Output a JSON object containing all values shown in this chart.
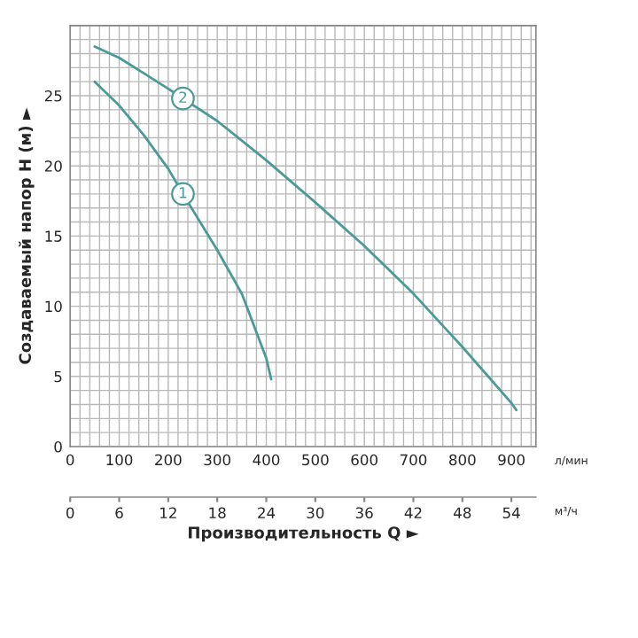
{
  "chart_data": {
    "type": "line",
    "xlabel": "Производительность Q ►",
    "ylabel": "Создаваемый напор H (м) ►",
    "xlim": [
      0,
      950
    ],
    "xticks": [
      0,
      100,
      200,
      300,
      400,
      500,
      600,
      700,
      800,
      900
    ],
    "x2lim": [
      0,
      57
    ],
    "x2ticks": [
      0,
      6,
      12,
      18,
      24,
      30,
      36,
      42,
      48,
      54
    ],
    "ylim": [
      0,
      30
    ],
    "yticks": [
      0,
      5,
      10,
      15,
      20,
      25
    ],
    "grid": true,
    "legend": false,
    "marker": "none",
    "line_style": "solid",
    "annotations": [
      "л/мин",
      "м³/ч"
    ],
    "series": [
      {
        "name": "1",
        "color": "#4a9a98",
        "x": [
          50,
          100,
          150,
          200,
          230,
          300,
          350,
          400,
          410
        ],
        "values": [
          26,
          24.3,
          22.2,
          19.8,
          18,
          14,
          10.9,
          6.3,
          4.8
        ]
      },
      {
        "name": "2",
        "color": "#4a9a98",
        "x": [
          50,
          100,
          150,
          200,
          230,
          300,
          400,
          500,
          600,
          700,
          800,
          900,
          910
        ],
        "values": [
          28.5,
          27.7,
          26.6,
          25.5,
          24.8,
          23.2,
          20.4,
          17.4,
          14.3,
          10.9,
          7.1,
          3.1,
          2.6
        ]
      }
    ]
  }
}
